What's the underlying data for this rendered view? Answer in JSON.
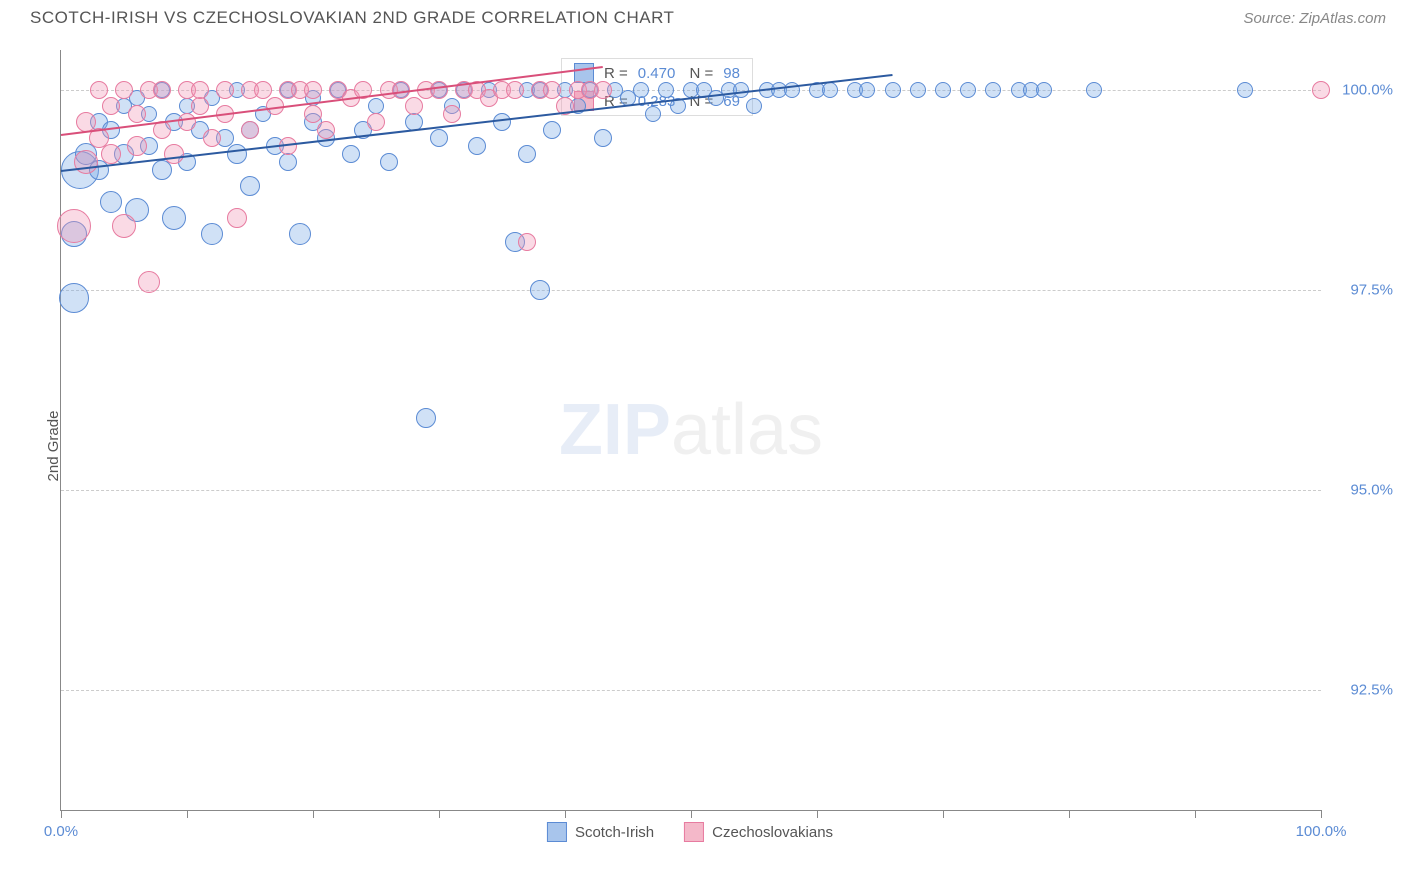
{
  "header": {
    "title": "SCOTCH-IRISH VS CZECHOSLOVAKIAN 2ND GRADE CORRELATION CHART",
    "source": "Source: ZipAtlas.com"
  },
  "axes": {
    "y_label": "2nd Grade",
    "y_ticks": [
      {
        "value": 92.5,
        "label": "92.5%"
      },
      {
        "value": 95.0,
        "label": "95.0%"
      },
      {
        "value": 97.5,
        "label": "97.5%"
      },
      {
        "value": 100.0,
        "label": "100.0%"
      }
    ],
    "y_min": 91.0,
    "y_max": 100.5,
    "x_min": 0,
    "x_max": 100,
    "x_tick_positions": [
      0,
      10,
      20,
      30,
      40,
      50,
      60,
      70,
      80,
      90,
      100
    ],
    "x_tick_labels": [
      {
        "pos": 0,
        "label": "0.0%"
      },
      {
        "pos": 100,
        "label": "100.0%"
      }
    ]
  },
  "watermark": {
    "prefix": "ZIP",
    "suffix": "atlas"
  },
  "legend": [
    {
      "label": "Scotch-Irish",
      "fill": "#a8c5ec",
      "stroke": "#5b8bd4"
    },
    {
      "label": "Czechoslovakians",
      "fill": "#f4b8c9",
      "stroke": "#e77ba0"
    }
  ],
  "stats": [
    {
      "fill": "#a8c5ec",
      "stroke": "#5b8bd4",
      "r": "0.470",
      "n": "98"
    },
    {
      "fill": "#f4b8c9",
      "stroke": "#e77ba0",
      "r": "0.283",
      "n": "69"
    }
  ],
  "trend_lines": [
    {
      "color": "#2c5aa0",
      "x1": 0,
      "y1": 99.0,
      "x2": 66,
      "y2": 100.2
    },
    {
      "color": "#d94f7a",
      "x1": 0,
      "y1": 99.45,
      "x2": 43,
      "y2": 100.3
    }
  ],
  "series": [
    {
      "name": "scotch-irish",
      "fill": "rgba(120,170,230,0.35)",
      "stroke": "#5b8bd4",
      "points": [
        {
          "x": 1,
          "y": 97.4,
          "r": 14
        },
        {
          "x": 1,
          "y": 98.2,
          "r": 12
        },
        {
          "x": 1.5,
          "y": 99.0,
          "r": 18
        },
        {
          "x": 2,
          "y": 99.2,
          "r": 10
        },
        {
          "x": 3,
          "y": 99.0,
          "r": 9
        },
        {
          "x": 3,
          "y": 99.6,
          "r": 8
        },
        {
          "x": 4,
          "y": 98.6,
          "r": 10
        },
        {
          "x": 4,
          "y": 99.5,
          "r": 8
        },
        {
          "x": 5,
          "y": 99.8,
          "r": 7
        },
        {
          "x": 5,
          "y": 99.2,
          "r": 9
        },
        {
          "x": 6,
          "y": 99.9,
          "r": 7
        },
        {
          "x": 6,
          "y": 98.5,
          "r": 11
        },
        {
          "x": 7,
          "y": 99.3,
          "r": 8
        },
        {
          "x": 7,
          "y": 99.7,
          "r": 7
        },
        {
          "x": 8,
          "y": 99.0,
          "r": 9
        },
        {
          "x": 8,
          "y": 100.0,
          "r": 7
        },
        {
          "x": 9,
          "y": 99.6,
          "r": 8
        },
        {
          "x": 9,
          "y": 98.4,
          "r": 11
        },
        {
          "x": 10,
          "y": 99.8,
          "r": 7
        },
        {
          "x": 10,
          "y": 99.1,
          "r": 8
        },
        {
          "x": 11,
          "y": 99.5,
          "r": 8
        },
        {
          "x": 12,
          "y": 98.2,
          "r": 10
        },
        {
          "x": 12,
          "y": 99.9,
          "r": 7
        },
        {
          "x": 13,
          "y": 99.4,
          "r": 8
        },
        {
          "x": 14,
          "y": 99.2,
          "r": 9
        },
        {
          "x": 14,
          "y": 100.0,
          "r": 7
        },
        {
          "x": 15,
          "y": 99.5,
          "r": 8
        },
        {
          "x": 15,
          "y": 98.8,
          "r": 9
        },
        {
          "x": 16,
          "y": 99.7,
          "r": 7
        },
        {
          "x": 17,
          "y": 99.3,
          "r": 8
        },
        {
          "x": 18,
          "y": 100.0,
          "r": 7
        },
        {
          "x": 18,
          "y": 99.1,
          "r": 8
        },
        {
          "x": 19,
          "y": 98.2,
          "r": 10
        },
        {
          "x": 20,
          "y": 99.6,
          "r": 8
        },
        {
          "x": 20,
          "y": 99.9,
          "r": 7
        },
        {
          "x": 21,
          "y": 99.4,
          "r": 8
        },
        {
          "x": 22,
          "y": 100.0,
          "r": 7
        },
        {
          "x": 23,
          "y": 99.2,
          "r": 8
        },
        {
          "x": 24,
          "y": 99.5,
          "r": 8
        },
        {
          "x": 25,
          "y": 99.8,
          "r": 7
        },
        {
          "x": 26,
          "y": 99.1,
          "r": 8
        },
        {
          "x": 27,
          "y": 100.0,
          "r": 7
        },
        {
          "x": 28,
          "y": 99.6,
          "r": 8
        },
        {
          "x": 29,
          "y": 95.9,
          "r": 9
        },
        {
          "x": 30,
          "y": 100.0,
          "r": 7
        },
        {
          "x": 30,
          "y": 99.4,
          "r": 8
        },
        {
          "x": 31,
          "y": 99.8,
          "r": 7
        },
        {
          "x": 32,
          "y": 100.0,
          "r": 7
        },
        {
          "x": 33,
          "y": 99.3,
          "r": 8
        },
        {
          "x": 34,
          "y": 100.0,
          "r": 7
        },
        {
          "x": 35,
          "y": 99.6,
          "r": 8
        },
        {
          "x": 36,
          "y": 98.1,
          "r": 9
        },
        {
          "x": 37,
          "y": 100.0,
          "r": 7
        },
        {
          "x": 37,
          "y": 99.2,
          "r": 8
        },
        {
          "x": 38,
          "y": 100.0,
          "r": 7
        },
        {
          "x": 38,
          "y": 97.5,
          "r": 9
        },
        {
          "x": 39,
          "y": 99.5,
          "r": 8
        },
        {
          "x": 40,
          "y": 100.0,
          "r": 7
        },
        {
          "x": 41,
          "y": 99.8,
          "r": 7
        },
        {
          "x": 42,
          "y": 100.0,
          "r": 7
        },
        {
          "x": 43,
          "y": 99.4,
          "r": 8
        },
        {
          "x": 44,
          "y": 100.0,
          "r": 7
        },
        {
          "x": 45,
          "y": 99.9,
          "r": 7
        },
        {
          "x": 46,
          "y": 100.0,
          "r": 7
        },
        {
          "x": 47,
          "y": 99.7,
          "r": 7
        },
        {
          "x": 48,
          "y": 100.0,
          "r": 7
        },
        {
          "x": 49,
          "y": 99.8,
          "r": 7
        },
        {
          "x": 50,
          "y": 100.0,
          "r": 7
        },
        {
          "x": 51,
          "y": 100.0,
          "r": 7
        },
        {
          "x": 52,
          "y": 99.9,
          "r": 7
        },
        {
          "x": 53,
          "y": 100.0,
          "r": 7
        },
        {
          "x": 54,
          "y": 100.0,
          "r": 7
        },
        {
          "x": 55,
          "y": 99.8,
          "r": 7
        },
        {
          "x": 56,
          "y": 100.0,
          "r": 7
        },
        {
          "x": 57,
          "y": 100.0,
          "r": 7
        },
        {
          "x": 58,
          "y": 100.0,
          "r": 7
        },
        {
          "x": 60,
          "y": 100.0,
          "r": 7
        },
        {
          "x": 61,
          "y": 100.0,
          "r": 7
        },
        {
          "x": 63,
          "y": 100.0,
          "r": 7
        },
        {
          "x": 64,
          "y": 100.0,
          "r": 7
        },
        {
          "x": 66,
          "y": 100.0,
          "r": 7
        },
        {
          "x": 68,
          "y": 100.0,
          "r": 7
        },
        {
          "x": 70,
          "y": 100.0,
          "r": 7
        },
        {
          "x": 72,
          "y": 100.0,
          "r": 7
        },
        {
          "x": 74,
          "y": 100.0,
          "r": 7
        },
        {
          "x": 76,
          "y": 100.0,
          "r": 7
        },
        {
          "x": 77,
          "y": 100.0,
          "r": 7
        },
        {
          "x": 78,
          "y": 100.0,
          "r": 7
        },
        {
          "x": 82,
          "y": 100.0,
          "r": 7
        },
        {
          "x": 94,
          "y": 100.0,
          "r": 7
        }
      ]
    },
    {
      "name": "czechoslovakians",
      "fill": "rgba(240,150,180,0.35)",
      "stroke": "#e77ba0",
      "points": [
        {
          "x": 1,
          "y": 98.3,
          "r": 16
        },
        {
          "x": 2,
          "y": 99.1,
          "r": 11
        },
        {
          "x": 2,
          "y": 99.6,
          "r": 9
        },
        {
          "x": 3,
          "y": 100.0,
          "r": 8
        },
        {
          "x": 3,
          "y": 99.4,
          "r": 9
        },
        {
          "x": 4,
          "y": 99.8,
          "r": 8
        },
        {
          "x": 4,
          "y": 99.2,
          "r": 9
        },
        {
          "x": 5,
          "y": 100.0,
          "r": 8
        },
        {
          "x": 5,
          "y": 98.3,
          "r": 11
        },
        {
          "x": 6,
          "y": 99.7,
          "r": 8
        },
        {
          "x": 6,
          "y": 99.3,
          "r": 9
        },
        {
          "x": 7,
          "y": 100.0,
          "r": 8
        },
        {
          "x": 7,
          "y": 97.6,
          "r": 10
        },
        {
          "x": 8,
          "y": 99.5,
          "r": 8
        },
        {
          "x": 8,
          "y": 100.0,
          "r": 8
        },
        {
          "x": 9,
          "y": 99.2,
          "r": 9
        },
        {
          "x": 10,
          "y": 100.0,
          "r": 8
        },
        {
          "x": 10,
          "y": 99.6,
          "r": 8
        },
        {
          "x": 11,
          "y": 99.8,
          "r": 8
        },
        {
          "x": 11,
          "y": 100.0,
          "r": 8
        },
        {
          "x": 12,
          "y": 99.4,
          "r": 8
        },
        {
          "x": 13,
          "y": 100.0,
          "r": 8
        },
        {
          "x": 13,
          "y": 99.7,
          "r": 8
        },
        {
          "x": 14,
          "y": 98.4,
          "r": 9
        },
        {
          "x": 15,
          "y": 100.0,
          "r": 8
        },
        {
          "x": 15,
          "y": 99.5,
          "r": 8
        },
        {
          "x": 16,
          "y": 100.0,
          "r": 8
        },
        {
          "x": 17,
          "y": 99.8,
          "r": 8
        },
        {
          "x": 18,
          "y": 100.0,
          "r": 8
        },
        {
          "x": 18,
          "y": 99.3,
          "r": 8
        },
        {
          "x": 19,
          "y": 100.0,
          "r": 8
        },
        {
          "x": 20,
          "y": 99.7,
          "r": 8
        },
        {
          "x": 20,
          "y": 100.0,
          "r": 8
        },
        {
          "x": 21,
          "y": 99.5,
          "r": 8
        },
        {
          "x": 22,
          "y": 100.0,
          "r": 8
        },
        {
          "x": 23,
          "y": 99.9,
          "r": 8
        },
        {
          "x": 24,
          "y": 100.0,
          "r": 8
        },
        {
          "x": 25,
          "y": 99.6,
          "r": 8
        },
        {
          "x": 26,
          "y": 100.0,
          "r": 8
        },
        {
          "x": 27,
          "y": 100.0,
          "r": 8
        },
        {
          "x": 28,
          "y": 99.8,
          "r": 8
        },
        {
          "x": 29,
          "y": 100.0,
          "r": 8
        },
        {
          "x": 30,
          "y": 100.0,
          "r": 8
        },
        {
          "x": 31,
          "y": 99.7,
          "r": 8
        },
        {
          "x": 32,
          "y": 100.0,
          "r": 8
        },
        {
          "x": 33,
          "y": 100.0,
          "r": 8
        },
        {
          "x": 34,
          "y": 99.9,
          "r": 8
        },
        {
          "x": 35,
          "y": 100.0,
          "r": 8
        },
        {
          "x": 36,
          "y": 100.0,
          "r": 8
        },
        {
          "x": 37,
          "y": 98.1,
          "r": 8
        },
        {
          "x": 38,
          "y": 100.0,
          "r": 8
        },
        {
          "x": 39,
          "y": 100.0,
          "r": 8
        },
        {
          "x": 40,
          "y": 99.8,
          "r": 8
        },
        {
          "x": 41,
          "y": 100.0,
          "r": 8
        },
        {
          "x": 42,
          "y": 100.0,
          "r": 8
        },
        {
          "x": 43,
          "y": 100.0,
          "r": 8
        },
        {
          "x": 100,
          "y": 100.0,
          "r": 8
        }
      ]
    }
  ]
}
